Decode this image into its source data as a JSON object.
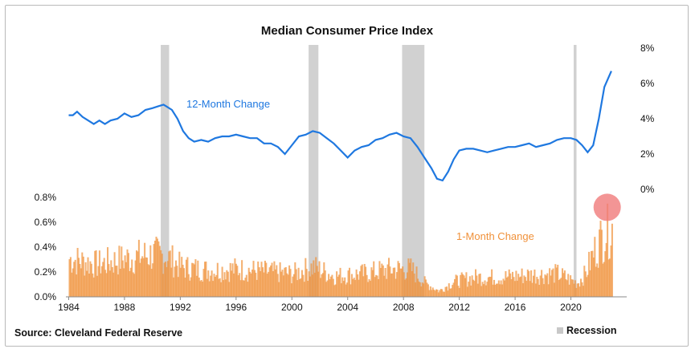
{
  "chart_data": {
    "type": "line",
    "title": "Median Consumer Price Index",
    "source": "Source: Cleveland Federal Reserve",
    "legend_recession": "Recession",
    "x_ticks": [
      "1984",
      "1988",
      "1992",
      "1996",
      "2000",
      "2004",
      "2008",
      "2012",
      "2016",
      "2020"
    ],
    "xlim": [
      1983.8,
      2024.0
    ],
    "right_axis": {
      "ticks": [
        "8%",
        "6%",
        "4%",
        "2%",
        "0%"
      ],
      "ylim": [
        0,
        8
      ]
    },
    "left_axis": {
      "ticks": [
        "0.8%",
        "0.6%",
        "0.4%",
        "0.2%",
        "0.0%"
      ],
      "ylim": [
        0,
        0.8
      ]
    },
    "recessions": [
      [
        1990.6,
        1991.2
      ],
      [
        2001.2,
        2001.9
      ],
      [
        2007.9,
        2009.5
      ],
      [
        2020.2,
        2020.4
      ]
    ],
    "series": [
      {
        "name": "12-Month Change",
        "color": "#1f78e0",
        "x": [
          1984.0,
          1984.3,
          1984.6,
          1985.0,
          1985.4,
          1985.8,
          1986.2,
          1986.6,
          1987.0,
          1987.5,
          1988.0,
          1988.5,
          1989.0,
          1989.5,
          1990.0,
          1990.4,
          1990.8,
          1991.0,
          1991.4,
          1991.8,
          1992.2,
          1992.6,
          1993.0,
          1993.5,
          1994.0,
          1994.5,
          1995.0,
          1995.5,
          1996.0,
          1996.5,
          1997.0,
          1997.5,
          1998.0,
          1998.5,
          1999.0,
          1999.5,
          2000.0,
          2000.5,
          2001.0,
          2001.5,
          2002.0,
          2002.5,
          2003.0,
          2003.5,
          2004.0,
          2004.5,
          2005.0,
          2005.5,
          2006.0,
          2006.5,
          2007.0,
          2007.5,
          2008.0,
          2008.5,
          2009.0,
          2009.5,
          2010.0,
          2010.4,
          2010.8,
          2011.2,
          2011.6,
          2012.0,
          2012.5,
          2013.0,
          2013.5,
          2014.0,
          2014.5,
          2015.0,
          2015.5,
          2016.0,
          2016.5,
          2017.0,
          2017.5,
          2018.0,
          2018.5,
          2019.0,
          2019.5,
          2020.0,
          2020.4,
          2020.8,
          2021.2,
          2021.6,
          2022.0,
          2022.4,
          2022.9
        ],
        "values": [
          4.2,
          4.2,
          4.4,
          4.1,
          3.9,
          3.7,
          3.9,
          3.7,
          3.9,
          4.0,
          4.3,
          4.1,
          4.2,
          4.5,
          4.6,
          4.7,
          4.8,
          4.7,
          4.5,
          4.0,
          3.3,
          2.9,
          2.7,
          2.8,
          2.7,
          2.9,
          3.0,
          3.0,
          3.1,
          3.0,
          2.9,
          2.9,
          2.6,
          2.6,
          2.4,
          2.0,
          2.5,
          3.0,
          3.1,
          3.3,
          3.2,
          2.9,
          2.6,
          2.2,
          1.8,
          2.2,
          2.4,
          2.5,
          2.8,
          2.9,
          3.1,
          3.2,
          3.0,
          2.9,
          2.4,
          1.8,
          1.2,
          0.6,
          0.5,
          1.0,
          1.7,
          2.2,
          2.3,
          2.3,
          2.2,
          2.1,
          2.2,
          2.3,
          2.4,
          2.4,
          2.5,
          2.6,
          2.4,
          2.5,
          2.6,
          2.8,
          2.9,
          2.9,
          2.8,
          2.5,
          2.1,
          2.5,
          4.0,
          5.8,
          6.7
        ]
      },
      {
        "name": "1-Month Change",
        "color": "#f0913a",
        "x": [
          1984.0,
          1986.0,
          1988.0,
          1990.0,
          1991.0,
          1992.0,
          1994.0,
          1996.0,
          1998.0,
          2000.0,
          2001.5,
          2003.0,
          2005.0,
          2007.0,
          2008.5,
          2009.5,
          2010.5,
          2011.5,
          2013.0,
          2015.0,
          2017.0,
          2019.0,
          2020.4,
          2021.0,
          2021.5,
          2022.0,
          2022.5,
          2022.9
        ],
        "values": [
          0.33,
          0.28,
          0.33,
          0.37,
          0.35,
          0.26,
          0.23,
          0.24,
          0.22,
          0.2,
          0.26,
          0.18,
          0.2,
          0.24,
          0.24,
          0.12,
          0.05,
          0.13,
          0.17,
          0.17,
          0.19,
          0.2,
          0.12,
          0.2,
          0.36,
          0.48,
          0.58,
          0.6
        ]
      }
    ],
    "annotation_marker": {
      "x": 2022.6,
      "y": 0.72,
      "color": "#f07a7a"
    }
  }
}
